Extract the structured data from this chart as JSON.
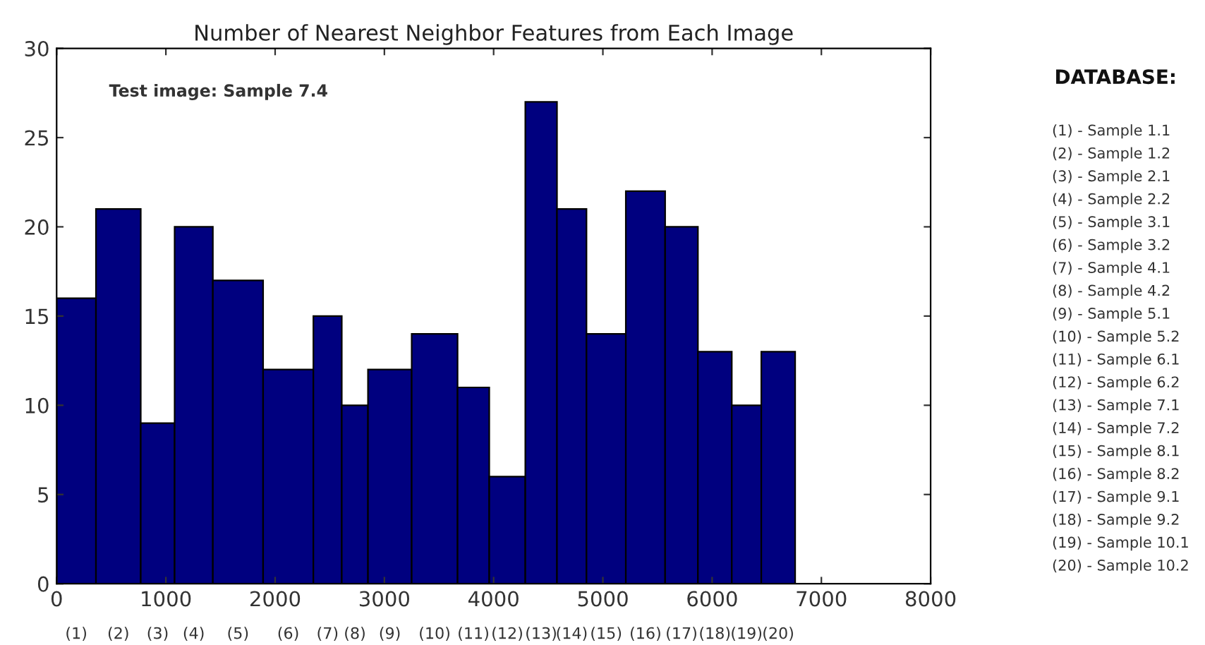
{
  "chart_data": {
    "type": "histogram",
    "title": "Number of Nearest Neighbor Features from Each Image",
    "bins": [
      0,
      360,
      770,
      1080,
      1430,
      1890,
      2350,
      2610,
      2850,
      3250,
      3670,
      3960,
      4290,
      4580,
      4850,
      5210,
      5570,
      5870,
      6180,
      6450,
      6760
    ],
    "values": [
      16,
      21,
      9,
      20,
      17,
      12,
      15,
      10,
      12,
      14,
      11,
      6,
      27,
      21,
      14,
      22,
      20,
      13,
      10,
      13
    ],
    "color": "#00007f",
    "xlim": [
      0,
      8000
    ],
    "xticks": [
      0,
      1000,
      2000,
      3000,
      4000,
      5000,
      6000,
      7000,
      8000
    ],
    "ylim": [
      0,
      30
    ],
    "yticks": [
      0,
      5,
      10,
      15,
      20,
      25,
      30
    ],
    "grid": false,
    "annotations": [
      "Test image: Sample 7.4",
      {
        "text": "(1)",
        "x": 180,
        "y": 0
      },
      {
        "text": "(2)",
        "x": 565,
        "y": 0
      },
      {
        "text": "(3)",
        "x": 925,
        "y": 0
      },
      {
        "text": "(4)",
        "x": 1255,
        "y": 0
      },
      {
        "text": "(5)",
        "x": 1660,
        "y": 0
      },
      {
        "text": "(6)",
        "x": 2120,
        "y": 0
      },
      {
        "text": "(7)",
        "x": 2480,
        "y": 0
      },
      {
        "text": "(8)",
        "x": 2730,
        "y": 0
      },
      {
        "text": "(9)",
        "x": 3050,
        "y": 0
      },
      {
        "text": "(10)",
        "x": 3460,
        "y": 0
      },
      {
        "text": "(11)",
        "x": 3815,
        "y": 0
      },
      {
        "text": "(12)",
        "x": 4125,
        "y": 0
      },
      {
        "text": "(13)",
        "x": 4435,
        "y": 0
      },
      {
        "text": "(14)",
        "x": 4715,
        "y": 0
      },
      {
        "text": "(15)",
        "x": 5030,
        "y": 0
      },
      {
        "text": "(16)",
        "x": 5390,
        "y": 0
      },
      {
        "text": "(17)",
        "x": 5720,
        "y": 0
      },
      {
        "text": "(18)",
        "x": 6025,
        "y": 0
      },
      {
        "text": "(19)",
        "x": 6315,
        "y": 0
      },
      {
        "text": "(20)",
        "x": 6605,
        "y": 0
      },
      "DATABASE:",
      "(1) - Sample 1.1",
      "(2) - Sample 1.2",
      "(3) - Sample 2.1",
      "(4) - Sample 2.2",
      "(5) - Sample 3.1",
      "(6) - Sample 3.2",
      "(7) - Sample 4.1",
      "(8) - Sample 4.2",
      "(9) - Sample 5.1",
      "(10) - Sample 5.2",
      "(11) - Sample 6.1",
      "(12) - Sample 6.2",
      "(13) - Sample 7.1",
      "(14) - Sample 7.2",
      "(15) - Sample 8.1",
      "(16) - Sample 8.2",
      "(17) - Sample 9.1",
      "(18) - Sample 9.2",
      "(19) - Sample 10.1",
      "(20) - Sample 10.2"
    ]
  }
}
